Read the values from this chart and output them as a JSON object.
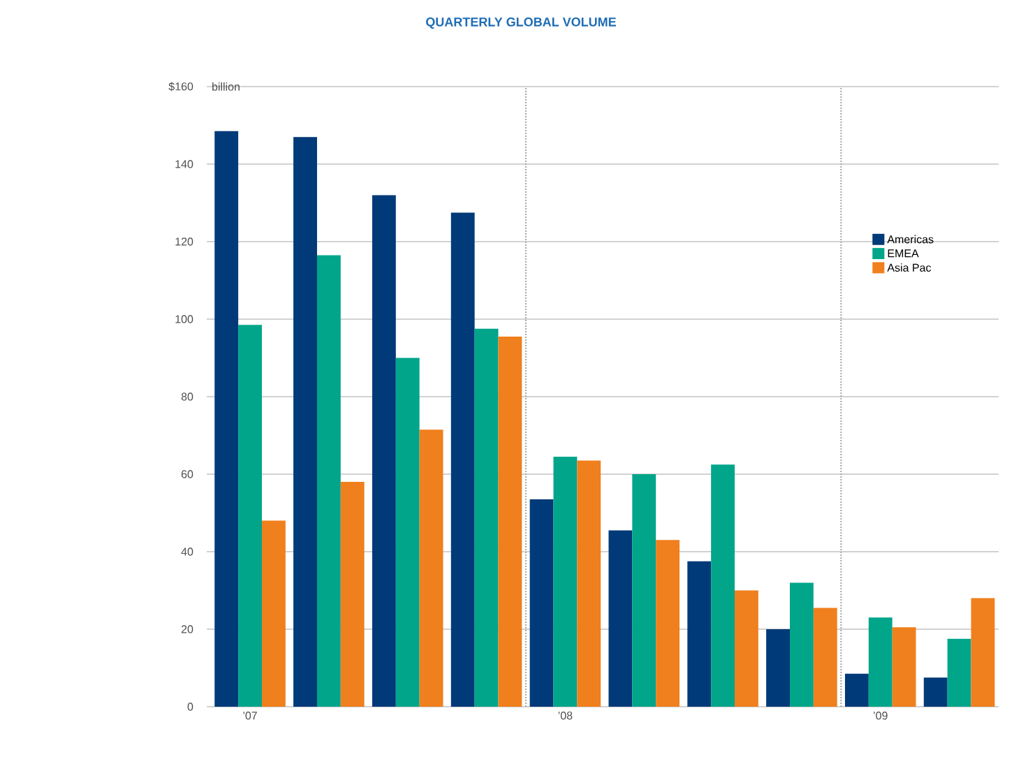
{
  "chart_data": {
    "type": "bar",
    "title": "QUARTERLY GLOBAL VOLUME",
    "ylabel": "billion",
    "categories": [
      "’07",
      null,
      null,
      null,
      "’08",
      null,
      null,
      null,
      "’09",
      null
    ],
    "series": [
      {
        "name": "Americas",
        "color": "#003a78",
        "values": [
          148.5,
          147,
          132,
          127.5,
          53.5,
          45.5,
          37.5,
          20,
          8.5,
          7.5
        ]
      },
      {
        "name": "EMEA",
        "color": "#00a58a",
        "values": [
          98.5,
          116.5,
          90,
          97.5,
          64.5,
          60,
          62.5,
          32,
          23,
          17.5
        ]
      },
      {
        "name": "Asia Pac",
        "color": "#f07f1d",
        "values": [
          48,
          58,
          71.5,
          95.5,
          63.5,
          43,
          30,
          25.5,
          20.5,
          28
        ]
      }
    ],
    "ylim": [
      0,
      160
    ],
    "yticks": [
      0,
      20,
      40,
      60,
      80,
      100,
      120,
      140,
      {
        "value": 160,
        "label": "$160"
      }
    ],
    "grid": "y",
    "legend": "right"
  }
}
